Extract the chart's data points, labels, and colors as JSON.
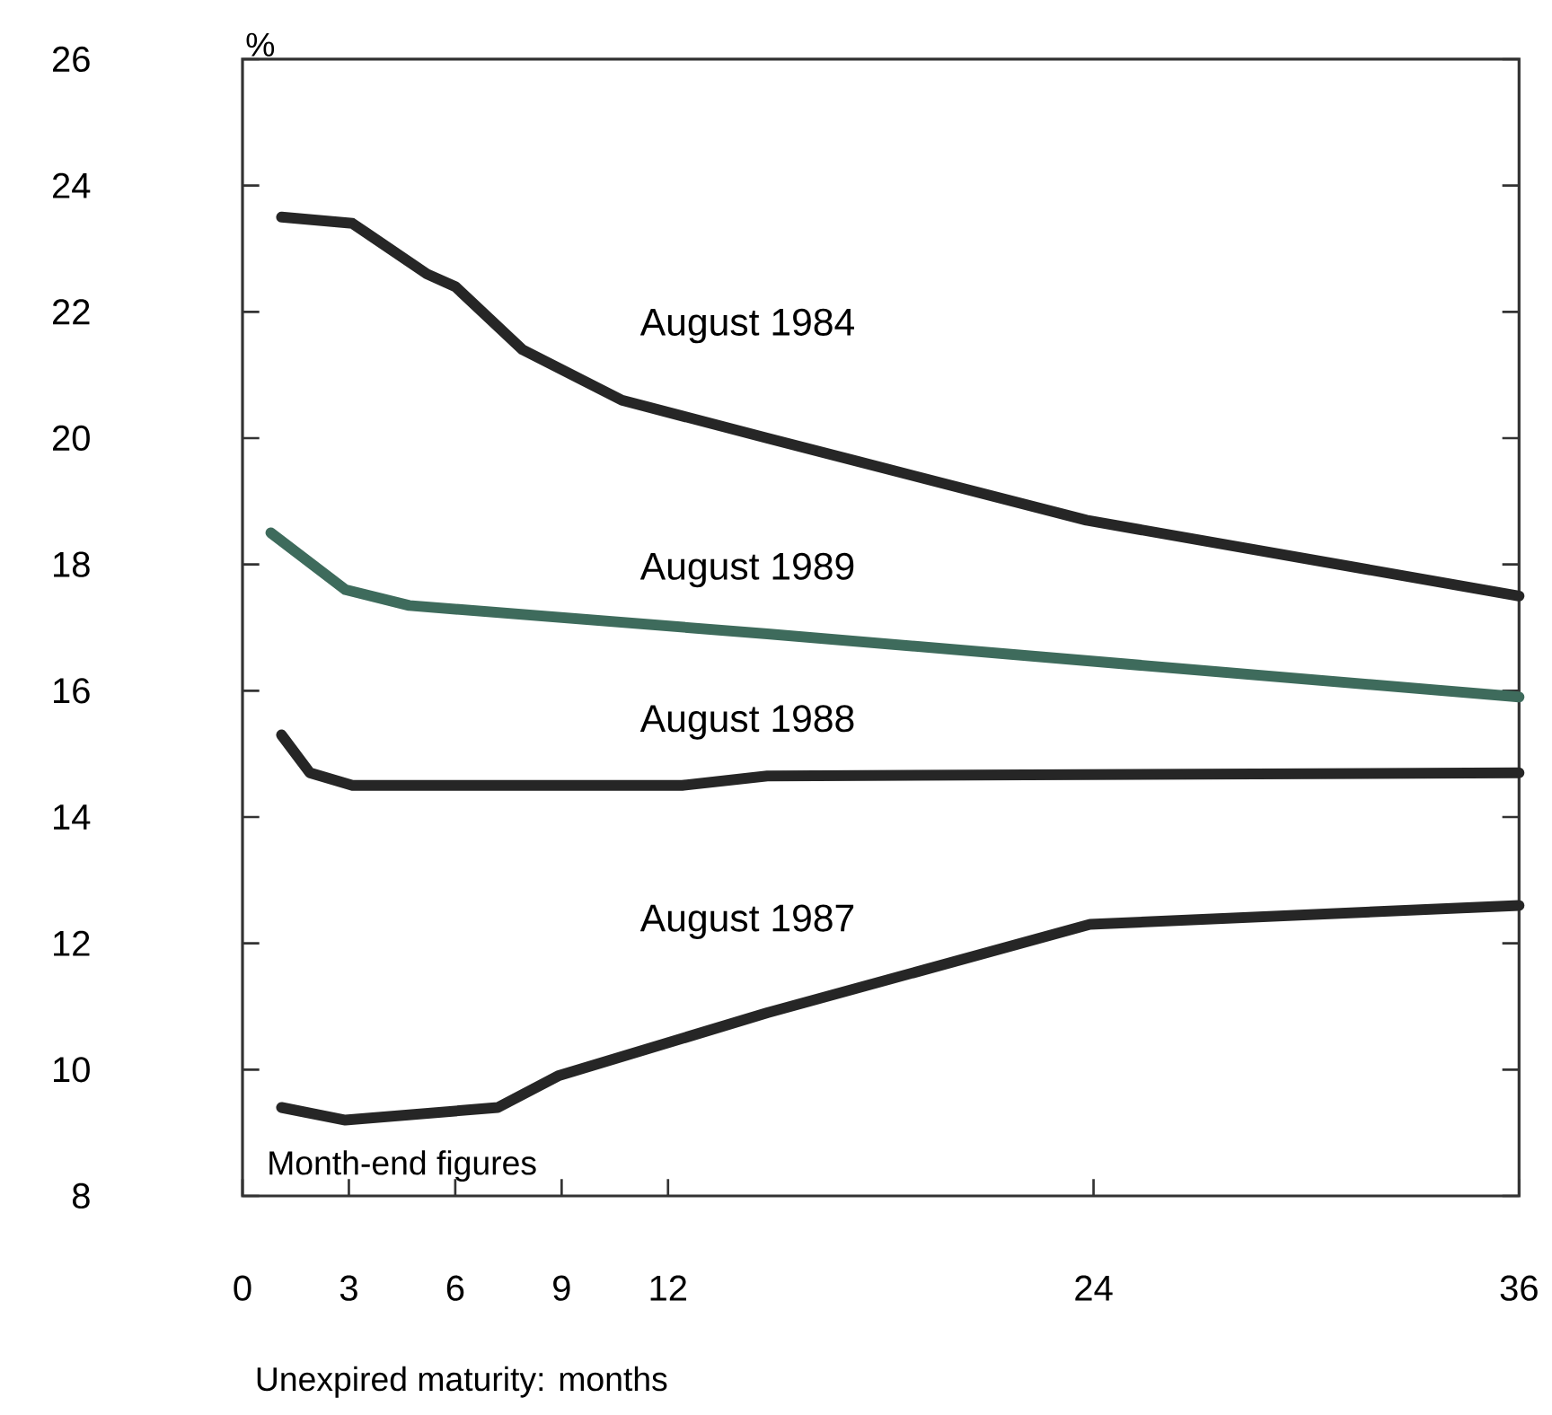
{
  "chart_data": {
    "type": "line",
    "ylabel": "%",
    "xlabel": "Unexpired maturity: months",
    "annotations": [
      "Month-end figures"
    ],
    "xlim": [
      0,
      36
    ],
    "xticks": [
      0,
      3,
      6,
      9,
      12,
      24,
      36
    ],
    "ylim": [
      8,
      26
    ],
    "yticks": [
      8,
      10,
      12,
      14,
      16,
      18,
      20,
      22,
      24,
      26
    ],
    "line_style": "solid",
    "marker": "none",
    "series": [
      {
        "name": "August 1984",
        "color": "#262626",
        "x": [
          1.1,
          3.1,
          5.2,
          6,
          7.9,
          10.7,
          14.8,
          23.8,
          36
        ],
        "values": [
          23.5,
          23.4,
          22.6,
          22.4,
          21.4,
          20.6,
          20.0,
          18.7,
          17.5
        ]
      },
      {
        "name": "August 1989",
        "color": "#3e6b5c",
        "x": [
          0.8,
          2.9,
          4.7,
          14.8,
          36
        ],
        "values": [
          18.5,
          17.6,
          17.35,
          16.9,
          15.9
        ]
      },
      {
        "name": "August 1988",
        "color": "#262626",
        "x": [
          1.1,
          1.9,
          3.1,
          7.7,
          12.4,
          14.8,
          36
        ],
        "values": [
          15.3,
          14.7,
          14.5,
          14.5,
          14.5,
          14.65,
          14.7
        ]
      },
      {
        "name": "August 1987",
        "color": "#262626",
        "x": [
          1.1,
          2.9,
          7.2,
          8.9,
          14.8,
          23.9,
          36
        ],
        "values": [
          9.4,
          9.2,
          9.4,
          9.9,
          10.9,
          12.3,
          12.6
        ]
      }
    ]
  }
}
